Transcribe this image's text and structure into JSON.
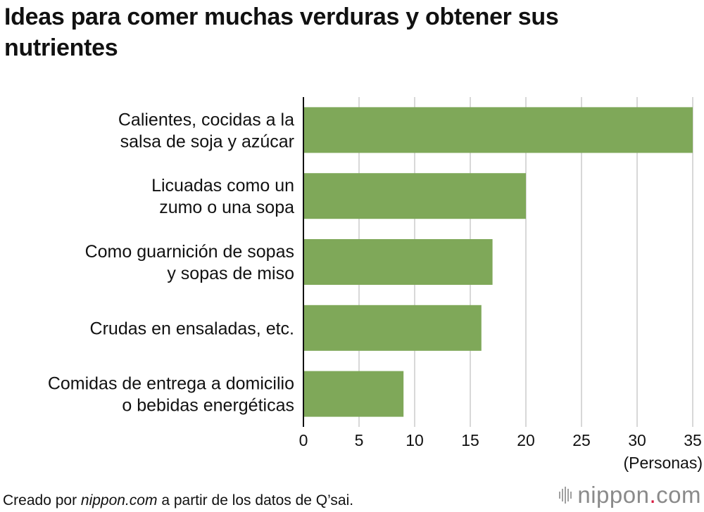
{
  "title": "Ideas para comer muchas verduras y obtener sus nutrientes",
  "chart_data": {
    "type": "bar",
    "orientation": "horizontal",
    "title": "Ideas para comer muchas verduras y obtener sus nutrientes",
    "categories": [
      [
        "Calientes, cocidas a la",
        "salsa de soja y azúcar"
      ],
      [
        "Licuadas como un",
        "zumo o una sopa"
      ],
      [
        "Como guarnición de sopas",
        "y sopas de miso"
      ],
      [
        "Crudas en ensaladas, etc."
      ],
      [
        "Comidas de entrega a domicilio",
        "o bebidas energéticas"
      ]
    ],
    "values": [
      35,
      20,
      17,
      16,
      9
    ],
    "xlim": [
      0,
      35
    ],
    "xticks": [
      0,
      5,
      10,
      15,
      20,
      25,
      30,
      35
    ],
    "xlabel": "(Personas)",
    "ylabel": "",
    "grid": true,
    "bar_color": "#7fa859",
    "grid_color": "#cccccc"
  },
  "footer": {
    "prefix": "Creado por ",
    "site": "nippon.com",
    "suffix": " a partir de los datos de Q’sai."
  },
  "logo": {
    "name": "nippon",
    "dot": ".",
    "tld": "com"
  }
}
